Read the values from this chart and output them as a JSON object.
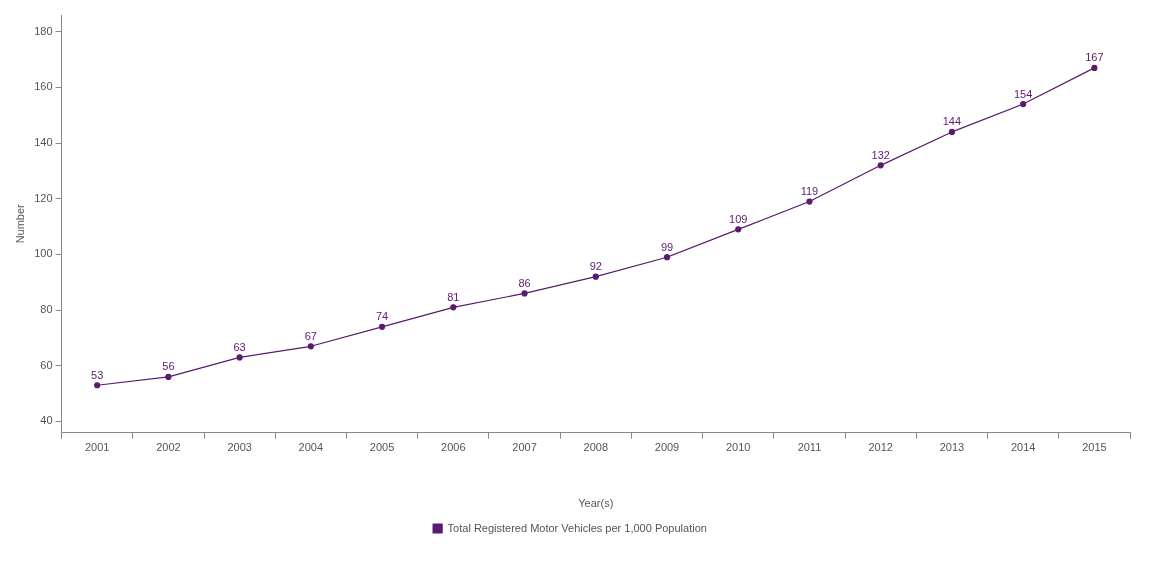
{
  "chart_data": {
    "type": "line",
    "xlabel": "Year(s)",
    "ylabel": "Number",
    "categories": [
      "2001",
      "2002",
      "2003",
      "2004",
      "2005",
      "2006",
      "2007",
      "2008",
      "2009",
      "2010",
      "2011",
      "2012",
      "2013",
      "2014",
      "2015"
    ],
    "series": [
      {
        "name": "Total Registered Motor Vehicles per 1,000 Population",
        "color": "#5a1a6e",
        "values": [
          53,
          56,
          63,
          67,
          74,
          81,
          86,
          92,
          99,
          109,
          119,
          132,
          144,
          154,
          167
        ]
      }
    ],
    "ylim": [
      36,
      186
    ],
    "yticks": [
      40,
      60,
      80,
      100,
      120,
      140,
      160,
      180
    ],
    "data_labels": true,
    "grid": false,
    "legend": "bottom",
    "marker": "circle",
    "line_style": "solid"
  }
}
